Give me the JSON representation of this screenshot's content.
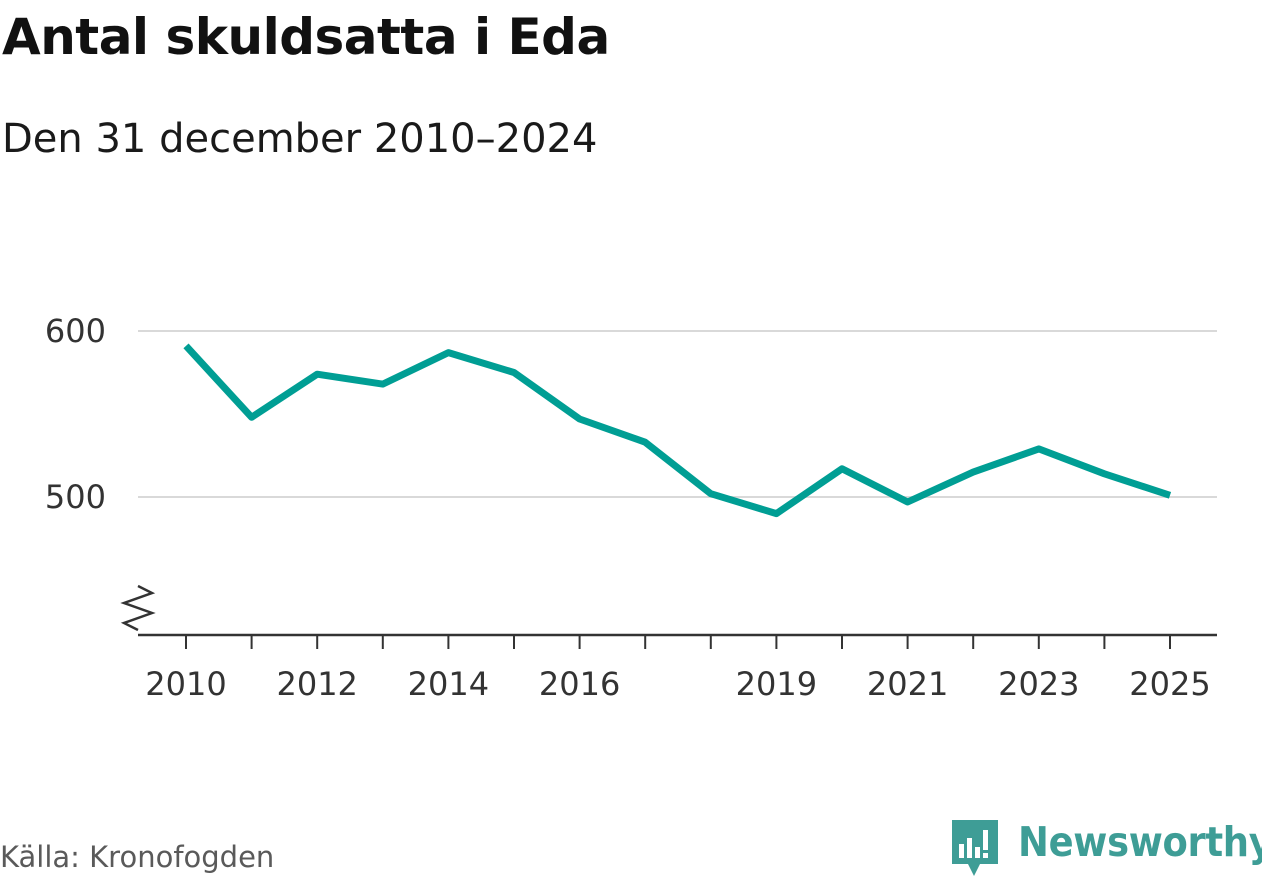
{
  "header": {
    "title": "Antal skuldsatta i Eda",
    "subtitle": "Den 31 december 2010–2024"
  },
  "footer": {
    "source": "Källa: Kronofogden",
    "brand": "Newsworthy",
    "brand_logo_icon": "newsworthy-chart-bubble-icon"
  },
  "colors": {
    "line": "#009e94",
    "grid": "#d9d9d9",
    "axis": "#333333",
    "brand": "#3e9d96"
  },
  "chart_data": {
    "type": "line",
    "title": "Antal skuldsatta i Eda",
    "subtitle": "Den 31 december 2010–2024",
    "xlabel": "",
    "ylabel": "",
    "x": [
      2010,
      2011,
      2012,
      2013,
      2014,
      2015,
      2016,
      2017,
      2018,
      2019,
      2020,
      2021,
      2022,
      2023,
      2024,
      2025
    ],
    "series": [
      {
        "name": "Antal skuldsatta",
        "values": [
          591,
          548,
          574,
          568,
          587,
          575,
          547,
          533,
          502,
          490,
          517,
          497,
          515,
          529,
          514,
          501
        ]
      }
    ],
    "xticks": [
      "2010",
      "2012",
      "2014",
      "2016",
      "2019",
      "2021",
      "2023",
      "2025"
    ],
    "yticks": [
      "600",
      "500"
    ],
    "ylim": [
      420,
      610
    ],
    "xlim": [
      2010,
      2025
    ],
    "axis_break": true,
    "grid": true
  }
}
